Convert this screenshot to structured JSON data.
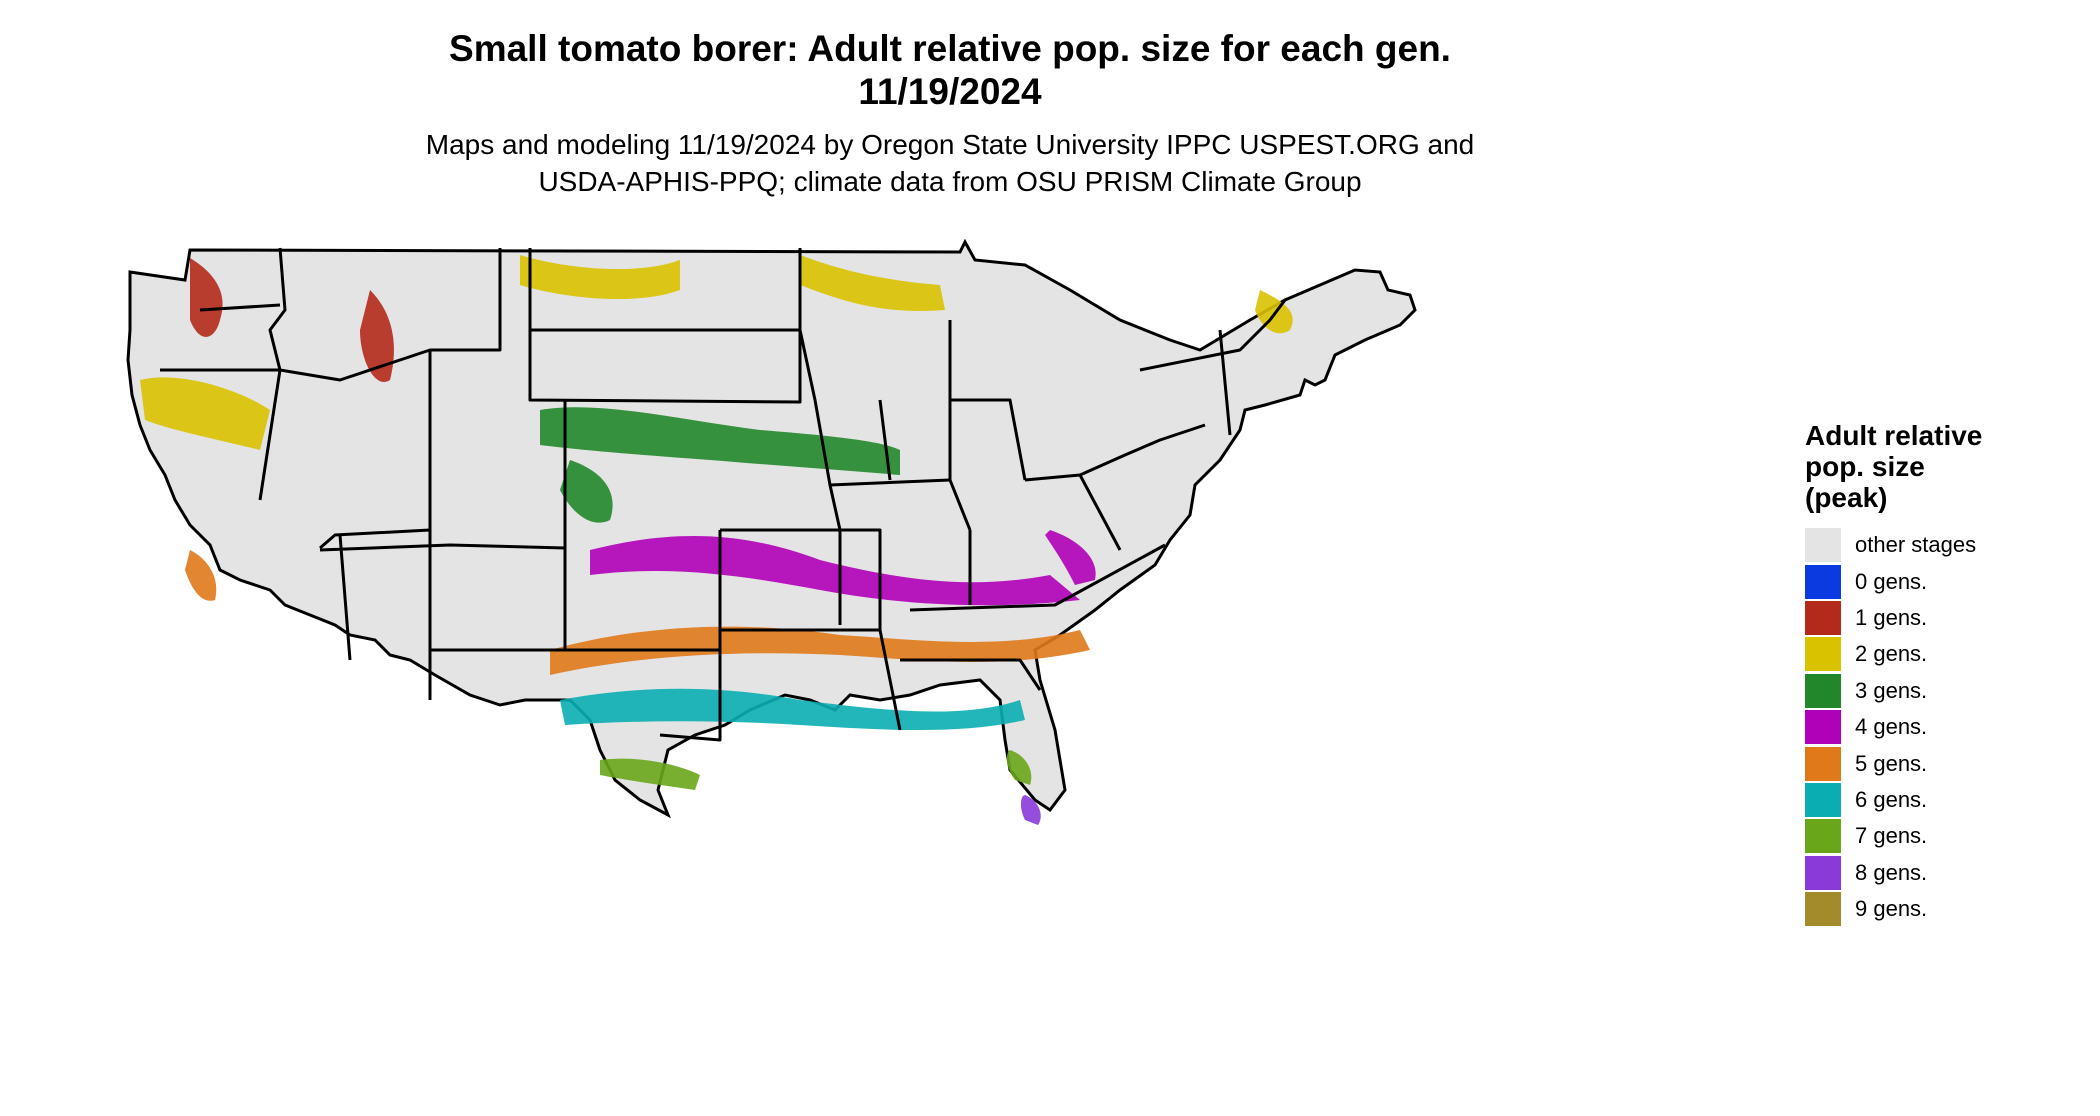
{
  "header": {
    "title_line1": "Small tomato borer: Adult relative pop. size for each gen.",
    "title_line2": "11/19/2024",
    "subtitle_line1": "Maps and modeling 11/19/2024 by Oregon State University IPPC USPEST.ORG and",
    "subtitle_line2": "USDA-APHIS-PPQ; climate data from OSU PRISM Climate Group"
  },
  "legend": {
    "title_line1": "Adult relative",
    "title_line2": "pop. size",
    "title_line3": "(peak)",
    "items": [
      {
        "label": "other stages",
        "color": "#e4e4e4"
      },
      {
        "label": "0 gens.",
        "color": "#0a3ae0"
      },
      {
        "label": "1 gens.",
        "color": "#b32a1a"
      },
      {
        "label": "2 gens.",
        "color": "#d9c200"
      },
      {
        "label": "3 gens.",
        "color": "#21872a"
      },
      {
        "label": "4 gens.",
        "color": "#b000b8"
      },
      {
        "label": "5 gens.",
        "color": "#e0791a"
      },
      {
        "label": "6 gens.",
        "color": "#0aadb3"
      },
      {
        "label": "7 gens.",
        "color": "#6aa61a"
      },
      {
        "label": "8 gens.",
        "color": "#8a3ad9"
      },
      {
        "label": "9 gens.",
        "color": "#a38a2a"
      }
    ]
  },
  "map": {
    "background_color": "#e4e4e4",
    "border_color": "#000000"
  }
}
